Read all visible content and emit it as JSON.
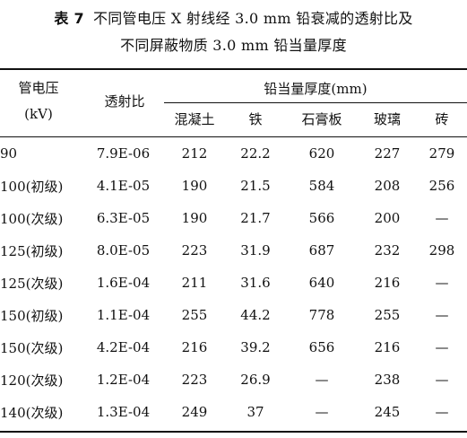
{
  "caption": {
    "table_no": "表 7",
    "line1": "不同管电压 X 射线经 3.0 mm 铅衰减的透射比及",
    "line2": "不同屏蔽物质 3.0 mm 铅当量厚度"
  },
  "header": {
    "voltage": "管电压",
    "voltage_unit": "(kV)",
    "transmission": "透射比",
    "lead_equiv": "铅当量厚度(mm)",
    "materials": [
      "混凝土",
      "铁",
      "石膏板",
      "玻璃",
      "砖"
    ]
  },
  "rows": [
    [
      "90",
      "7.9E-06",
      "212",
      "22.2",
      "620",
      "227",
      "279"
    ],
    [
      "100(初级)",
      "4.1E-05",
      "190",
      "21.5",
      "584",
      "208",
      "256"
    ],
    [
      "100(次级)",
      "6.3E-05",
      "190",
      "21.7",
      "566",
      "200",
      "—"
    ],
    [
      "125(初级)",
      "8.0E-05",
      "223",
      "31.9",
      "687",
      "232",
      "298"
    ],
    [
      "125(次级)",
      "1.6E-04",
      "211",
      "31.6",
      "640",
      "216",
      "—"
    ],
    [
      "150(初级)",
      "1.1E-04",
      "255",
      "44.2",
      "778",
      "255",
      "—"
    ],
    [
      "150(次级)",
      "4.2E-04",
      "216",
      "39.2",
      "656",
      "216",
      "—"
    ],
    [
      "120(次级)",
      "1.2E-04",
      "223",
      "26.9",
      "—",
      "238",
      "—"
    ],
    [
      "140(次级)",
      "1.3E-04",
      "249",
      "37",
      "—",
      "245",
      "—"
    ]
  ]
}
